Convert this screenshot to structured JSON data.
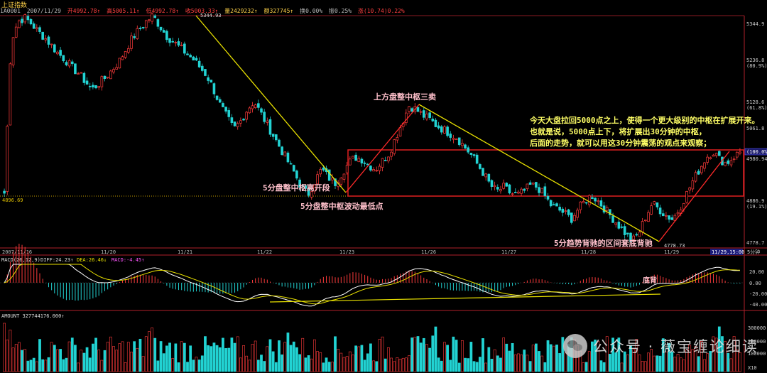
{
  "window": {
    "title": "上证指数"
  },
  "info_bar": {
    "code": "1A0001",
    "date": "2007/11/29",
    "open": "开4992.78↑",
    "high": "高5005.11↑",
    "low": "低4992.78↑",
    "close": "收5003.33↑",
    "volume": "量2429232↑",
    "amount": "额327745↑",
    "turnover": "换0.00%",
    "amplitude": "振0.25%",
    "change": "涨(10.74)0.22%"
  },
  "colors": {
    "up": "#ff3b3b",
    "down": "#22d3d3",
    "axis": "#b0202a",
    "yellow_line": "#e8e000",
    "red_line": "#ff2a2a",
    "annotation": "#ffc0cb",
    "annotation_yellow": "#ffff00"
  },
  "price_axis": {
    "ticks": [
      "5344.9",
      "5236.8",
      "5128.6",
      "5061.8",
      "4980.94",
      "4886.9",
      "4778.7"
    ],
    "pct_ticks": [
      "(80.9%)",
      "(61.8%)",
      "(19.1%)"
    ],
    "current_box": "(100.0%)"
  },
  "price_labels": {
    "high": "5344.93",
    "low": "4778.73",
    "left_level": "4896.69"
  },
  "date_axis": {
    "labels": [
      "2007/11/16",
      "11/20",
      "11/21",
      "11/22",
      "11/23",
      "11/26",
      "11/27",
      "11/28",
      "11/29",
      "11/29,15:00"
    ],
    "period": "5分钟"
  },
  "annotations": {
    "sell3": "上方盘整中枢三卖",
    "leave": "5分盘整中枢离开段",
    "lowest": "5分盘整中枢波动最低点",
    "divergence": "5分趋势背驰的区间套底背驰",
    "note_lines": [
      "今天大盘拉回5000点之上，使得一个更大级别的中枢在扩展开来。",
      "也就是说，5000点上下，将扩展出30分钟的中枢，",
      "后面的走势，就可以用这30分钟震荡的观点来观察；"
    ],
    "macd_bottom": "底背"
  },
  "macd": {
    "header_name": "MACD(26,12,9)",
    "diff": "DIFF:24.23↑",
    "dea": "DEA:26.46↓",
    "macd": "MACD:-4.45↑",
    "ticks": [
      "20.00",
      "0.00",
      "-20.00",
      "-40.00"
    ]
  },
  "amount": {
    "header": "AMOUNT 327744176.000↑",
    "ticks": [
      "300000",
      "200000",
      "100000",
      "X10"
    ]
  },
  "watermark": {
    "text": "公众号 · 薇宝缠论细读"
  },
  "chart_data": {
    "type": "candlestick",
    "period": "5min",
    "x_start": "2007/11/16",
    "x_end": "2007/11/29 15:00",
    "ylim": [
      4778.73,
      5344.93
    ],
    "highest": 5344.93,
    "lowest": 4778.73,
    "last_close": 5003.33,
    "zones": [
      {
        "name": "5分盘整中枢",
        "upper": 5000,
        "lower": 4896.69
      }
    ],
    "path_points": [
      4900,
      5280,
      5330,
      5340,
      5325,
      5305,
      5290,
      5270,
      5250,
      5235,
      5215,
      5200,
      5180,
      5160,
      5175,
      5190,
      5210,
      5230,
      5260,
      5290,
      5310,
      5330,
      5344.93,
      5320,
      5295,
      5280,
      5265,
      5250,
      5235,
      5215,
      5195,
      5160,
      5120,
      5090,
      5060,
      5080,
      5110,
      5130,
      5100,
      5070,
      5040,
      5010,
      4980,
      4950,
      4915,
      4896.69,
      4930,
      4960,
      4940,
      4925,
      4950,
      4975,
      4990,
      4985,
      4970,
      4960,
      4980,
      5000,
      5040,
      5080,
      5120,
      5110,
      5095,
      5085,
      5070,
      5060,
      5050,
      5040,
      5020,
      5000,
      4975,
      4950,
      4920,
      4905,
      4915,
      4900,
      4895,
      4905,
      4920,
      4915,
      4895,
      4870,
      4860,
      4850,
      4835,
      4860,
      4880,
      4895,
      4880,
      4860,
      4840,
      4820,
      4800,
      4778.73,
      4800,
      4840,
      4875,
      4860,
      4845,
      4835,
      4860,
      4895,
      4930,
      4960,
      4990,
      5005,
      4985,
      4975,
      4990,
      5003.33
    ]
  }
}
